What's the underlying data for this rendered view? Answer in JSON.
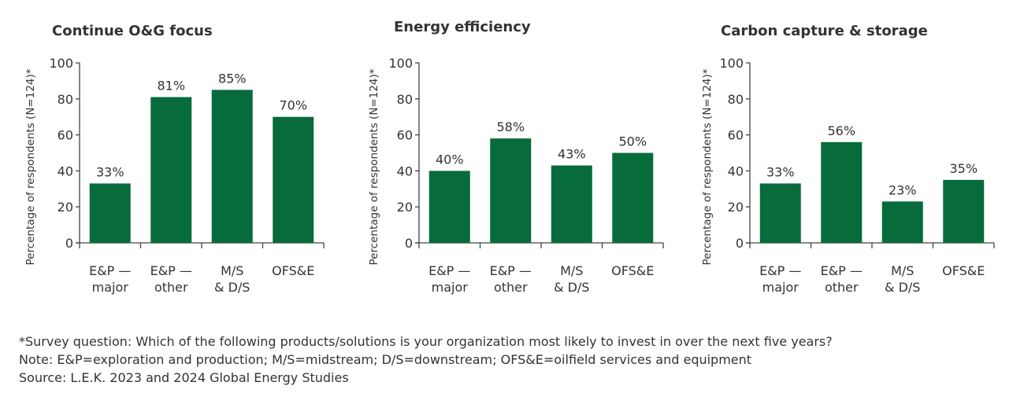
{
  "chart_data": [
    {
      "type": "bar",
      "title": "Continue O&G focus",
      "ylabel": "Percentage of respondents (N=124)*",
      "categories": [
        [
          "E&P —",
          "major"
        ],
        [
          "E&P —",
          "other"
        ],
        [
          "M/S",
          "& D/S"
        ],
        [
          "OFS&E"
        ]
      ],
      "values": [
        33,
        81,
        85,
        70
      ],
      "data_labels": [
        "33%",
        "81%",
        "85%",
        "70%"
      ],
      "yticks": [
        0,
        20,
        40,
        60,
        80,
        100
      ],
      "ylim": [
        0,
        100
      ],
      "grid": false,
      "color": "#086b3c"
    },
    {
      "type": "bar",
      "title": "Energy efficiency",
      "ylabel": "Percentage of respondents (N=124)*",
      "categories": [
        [
          "E&P —",
          "major"
        ],
        [
          "E&P —",
          "other"
        ],
        [
          "M/S",
          "& D/S"
        ],
        [
          "OFS&E"
        ]
      ],
      "values": [
        40,
        58,
        43,
        50
      ],
      "data_labels": [
        "40%",
        "58%",
        "43%",
        "50%"
      ],
      "yticks": [
        0,
        20,
        40,
        60,
        80,
        100
      ],
      "ylim": [
        0,
        100
      ],
      "grid": false,
      "color": "#086b3c"
    },
    {
      "type": "bar",
      "title": "Carbon capture & storage",
      "ylabel": "Percentage of respondents (N=124)*",
      "categories": [
        [
          "E&P —",
          "major"
        ],
        [
          "E&P —",
          "other"
        ],
        [
          "M/S",
          "& D/S"
        ],
        [
          "OFS&E"
        ]
      ],
      "values": [
        33,
        56,
        23,
        35
      ],
      "data_labels": [
        "33%",
        "56%",
        "23%",
        "35%"
      ],
      "yticks": [
        0,
        20,
        40,
        60,
        80,
        100
      ],
      "ylim": [
        0,
        100
      ],
      "grid": false,
      "color": "#086b3c"
    }
  ],
  "notes": {
    "survey": "*Survey question: Which of the following products/solutions is your organization most likely to invest in over the next five years?",
    "note": "Note: E&P=exploration and production; M/S=midstream; D/S=downstream; OFS&E=oilfield services and equipment",
    "source": "Source: L.E.K. 2023 and 2024 Global Energy Studies"
  }
}
